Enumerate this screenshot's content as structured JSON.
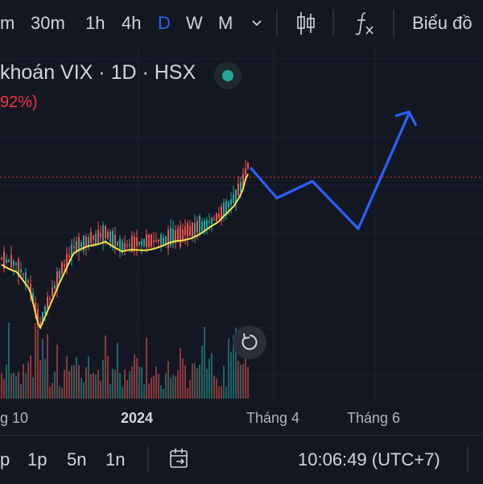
{
  "toolbar": {
    "intervals": [
      "m",
      "30m",
      "1h",
      "4h",
      "D",
      "W",
      "M"
    ],
    "active_interval": "D",
    "more_icon": "chevron-down-icon",
    "chart_type_icon": "candlestick-icon",
    "indicators_icon": "function-icon",
    "chart_menu_label": "Biểu đồ"
  },
  "symbol": {
    "title": "khoán VIX · 1D · HSX",
    "change": "92%)",
    "market_status_color": "#26a69a"
  },
  "chart": {
    "x_labels": [
      "g 10",
      "2024",
      "Tháng 4",
      "Tháng 6"
    ],
    "up_color": "#26a69a",
    "down_color": "#ef5350",
    "ma_color": "#f5e14a",
    "projection_color": "#2962ff",
    "price_line_color": "#f23645",
    "reset_icon": "reset-icon"
  },
  "bottom": {
    "ranges": [
      "p",
      "1p",
      "5n",
      "1n"
    ],
    "goto_icon": "calendar-goto-icon",
    "clock": "10:06:49 (UTC+7)"
  }
}
